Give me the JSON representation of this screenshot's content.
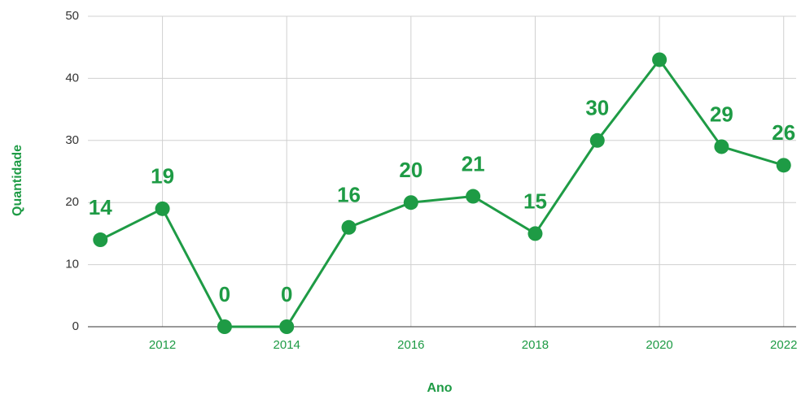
{
  "chart_data": {
    "type": "line",
    "x": [
      2011,
      2012,
      2013,
      2014,
      2015,
      2016,
      2017,
      2018,
      2019,
      2020,
      2021,
      2022
    ],
    "series": [
      {
        "name": "Quantidade",
        "color": "#1e9b45",
        "values": [
          14,
          19,
          0,
          0,
          16,
          20,
          21,
          15,
          30,
          43,
          29,
          26
        ]
      }
    ],
    "value_labels": [
      "14",
      "19",
      "0",
      "0",
      "16",
      "20",
      "21",
      "15",
      "30",
      "",
      "29",
      "26"
    ],
    "xlabel": "Ano",
    "ylabel": "Quantidade",
    "xlim": [
      2010.8,
      2022.2
    ],
    "xticks": [
      2012,
      2014,
      2016,
      2018,
      2020,
      2022
    ],
    "ylim": [
      0,
      50
    ],
    "yticks": [
      0,
      10,
      20,
      30,
      40,
      50
    ],
    "grid": true
  }
}
